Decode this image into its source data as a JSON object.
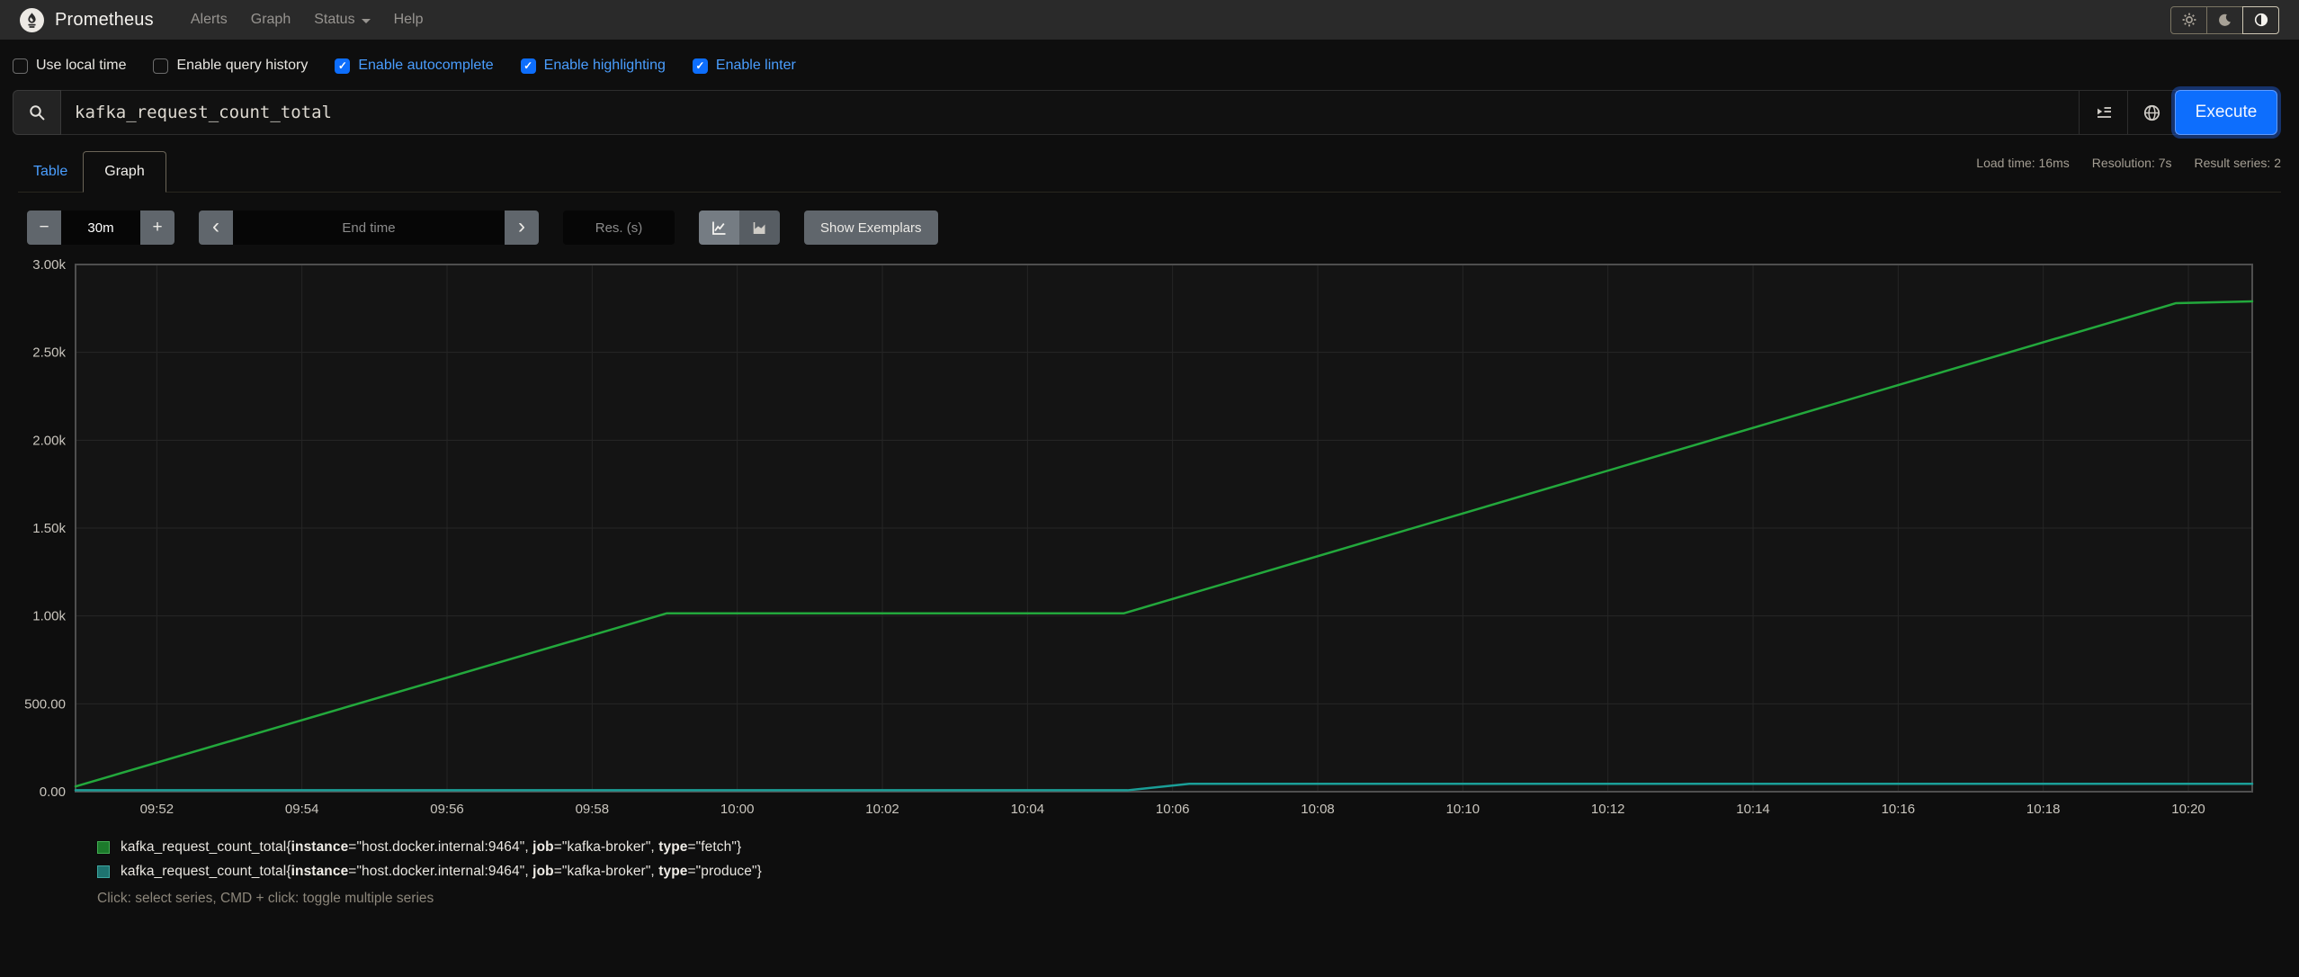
{
  "navbar": {
    "brand": "Prometheus",
    "items": [
      {
        "label": "Alerts"
      },
      {
        "label": "Graph"
      },
      {
        "label": "Status"
      },
      {
        "label": "Help"
      }
    ],
    "theme_icons": [
      "sun-icon",
      "moon-icon",
      "contrast-icon"
    ],
    "active_theme": "auto"
  },
  "options": [
    {
      "label": "Use local time",
      "checked": false
    },
    {
      "label": "Enable query history",
      "checked": false
    },
    {
      "label": "Enable autocomplete",
      "checked": true
    },
    {
      "label": "Enable highlighting",
      "checked": true
    },
    {
      "label": "Enable linter",
      "checked": true
    }
  ],
  "query": {
    "value": "kafka_request_count_total",
    "execute_label": "Execute"
  },
  "tabs": [
    {
      "label": "Table",
      "active": false
    },
    {
      "label": "Graph",
      "active": true
    }
  ],
  "stats": {
    "load_time": "Load time: 16ms",
    "resolution": "Resolution: 7s",
    "result_series": "Result series: 2"
  },
  "controls": {
    "decrease_label": "−",
    "range_value": "30m",
    "increase_label": "+",
    "prev_label": "‹",
    "end_time_placeholder": "End time",
    "next_label": "›",
    "res_placeholder": "Res. (s)",
    "show_exemplars_label": "Show Exemplars"
  },
  "chart_data": {
    "type": "line",
    "title": "",
    "xlabel": "",
    "ylabel": "",
    "grid": true,
    "legend_position": "bottom",
    "x_axis": {
      "window_minutes": 30,
      "start_time": "09:50:53",
      "end_time": "10:20:53",
      "tick_labels": [
        "09:52",
        "09:54",
        "09:56",
        "09:58",
        "10:00",
        "10:02",
        "10:04",
        "10:06",
        "10:08",
        "10:10",
        "10:12",
        "10:14",
        "10:16",
        "10:18",
        "10:20"
      ],
      "tick_offsets_min": [
        1.12,
        3.12,
        5.12,
        7.12,
        9.12,
        11.12,
        13.12,
        15.12,
        17.12,
        19.12,
        21.12,
        23.12,
        25.12,
        27.12,
        29.12
      ]
    },
    "y_axis": {
      "min": 0,
      "max": 3000,
      "tick_values": [
        0,
        500,
        1000,
        1500,
        2000,
        2500,
        3000
      ],
      "tick_labels": [
        "0.00",
        "500.00",
        "1.00k",
        "1.50k",
        "2.00k",
        "2.50k",
        "3.00k"
      ]
    },
    "series": [
      {
        "name": "kafka_request_count_total{instance=\"host.docker.internal:9464\", job=\"kafka-broker\", type=\"fetch\"}",
        "color": "#23a83c",
        "points_min_value": [
          [
            0,
            30
          ],
          [
            8.15,
            1015
          ],
          [
            14.45,
            1015
          ],
          [
            28.95,
            2780
          ],
          [
            30,
            2790
          ]
        ]
      },
      {
        "name": "kafka_request_count_total{instance=\"host.docker.internal:9464\", job=\"kafka-broker\", type=\"produce\"}",
        "color": "#1a9e97",
        "points_min_value": [
          [
            0,
            8
          ],
          [
            14.5,
            8
          ],
          [
            15.35,
            45
          ],
          [
            30,
            45
          ]
        ]
      }
    ]
  },
  "legend": {
    "items": [
      {
        "metric": "kafka_request_count_total",
        "labels": [
          {
            "k": "instance",
            "v": "host.docker.internal:9464"
          },
          {
            "k": "job",
            "v": "kafka-broker"
          },
          {
            "k": "type",
            "v": "fetch"
          }
        ],
        "swatch_fill": "#1c7a2b",
        "swatch_border": "#43ad53"
      },
      {
        "metric": "kafka_request_count_total",
        "labels": [
          {
            "k": "instance",
            "v": "host.docker.internal:9464"
          },
          {
            "k": "job",
            "v": "kafka-broker"
          },
          {
            "k": "type",
            "v": "produce"
          }
        ],
        "swatch_fill": "#1e7370",
        "swatch_border": "#3da59f"
      }
    ],
    "hint": "Click: select series, CMD + click: toggle multiple series"
  },
  "colors": {
    "accent_blue": "#0d6efd",
    "link_blue": "#4a9eff",
    "series_green": "#23a83c",
    "series_teal": "#1a9e97",
    "plot_background": "#141414"
  }
}
